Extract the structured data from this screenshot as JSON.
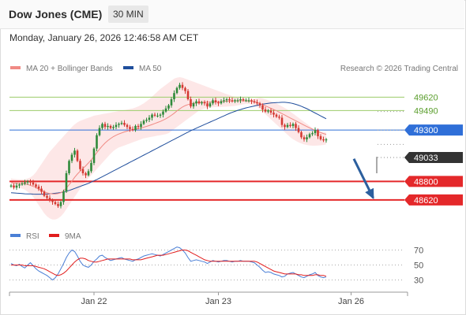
{
  "header": {
    "title": "Dow Jones (CME)",
    "interval": "30 MIN",
    "datetime": "Monday, January 26, 2026 12:46:58 AM CET"
  },
  "colors": {
    "ma20": "#f08a84",
    "bollinger_fill": "#fde3e3",
    "ma50": "#1f4e9c",
    "support": "#e4282a",
    "pivot": "#2f6fd8",
    "resistance": "#9bcc6a",
    "last_price": "#333333",
    "candle_up": "#2f8a3a",
    "candle_down": "#d43a33",
    "rsi": "#4a7fd6",
    "rsi_ma": "#e11d1d",
    "arrow": "#2c5f9e"
  },
  "chart_data": [
    {
      "type": "candlestick",
      "legend": [
        {
          "label": "MA 20 + Bollinger Bands",
          "color": "#f08a84"
        },
        {
          "label": "MA 50",
          "color": "#1f4e9c"
        }
      ],
      "legend_position": "top-left",
      "credit": "Research © 2026 Trading Central",
      "x_tick_labels": [
        {
          "label": "Jan 22",
          "index": 30
        },
        {
          "label": "Jan 23",
          "index": 75
        },
        {
          "label": "Jan 26",
          "index": 123
        }
      ],
      "ylim": [
        48420,
        49830
      ],
      "levels": [
        {
          "value": 49620,
          "label": "49620",
          "kind": "resistance"
        },
        {
          "value": 49490,
          "label": "49490",
          "kind": "resistance"
        },
        {
          "value": 49300,
          "label": "49300",
          "kind": "pivot"
        },
        {
          "value": 49033,
          "label": "49033",
          "kind": "last"
        },
        {
          "value": 48800,
          "label": "48800",
          "kind": "support"
        },
        {
          "value": 48620,
          "label": "48620",
          "kind": "support"
        }
      ],
      "arrow": {
        "from_index": 124,
        "from_value": 49020,
        "to_index": 131,
        "to_value": 48640
      },
      "close": [
        48760,
        48740,
        48760,
        48770,
        48780,
        48790,
        48800,
        48790,
        48770,
        48750,
        48730,
        48700,
        48660,
        48640,
        48620,
        48600,
        48580,
        48560,
        48600,
        48700,
        48880,
        49000,
        49060,
        49100,
        49000,
        48920,
        48880,
        48860,
        48900,
        48980,
        49120,
        49250,
        49320,
        49360,
        49330,
        49340,
        49320,
        49330,
        49350,
        49360,
        49370,
        49350,
        49330,
        49310,
        49300,
        49340,
        49330,
        49360,
        49390,
        49400,
        49420,
        49450,
        49440,
        49440,
        49450,
        49480,
        49510,
        49540,
        49600,
        49660,
        49710,
        49740,
        49710,
        49680,
        49600,
        49530,
        49560,
        49580,
        49560,
        49570,
        49560,
        49530,
        49560,
        49590,
        49570,
        49560,
        49580,
        49590,
        49600,
        49590,
        49580,
        49590,
        49590,
        49600,
        49590,
        49590,
        49590,
        49580,
        49570,
        49560,
        49540,
        49500,
        49480,
        49490,
        49470,
        49450,
        49430,
        49420,
        49350,
        49330,
        49350,
        49340,
        49360,
        49320,
        49280,
        49230,
        49210,
        49230,
        49260,
        49270,
        49300,
        49240,
        49210,
        49200,
        49210
      ],
      "ma20": [
        48790,
        48785,
        48782,
        48780,
        48778,
        48776,
        48770,
        48762,
        48752,
        48740,
        48726,
        48712,
        48700,
        48690,
        48682,
        48678,
        48678,
        48682,
        48690,
        48708,
        48736,
        48768,
        48802,
        48840,
        48872,
        48900,
        48926,
        48952,
        48980,
        49010,
        49044,
        49080,
        49114,
        49146,
        49174,
        49198,
        49218,
        49236,
        49250,
        49262,
        49272,
        49282,
        49290,
        49296,
        49302,
        49308,
        49314,
        49320,
        49328,
        49336,
        49344,
        49354,
        49364,
        49374,
        49384,
        49396,
        49410,
        49426,
        49444,
        49464,
        49486,
        49506,
        49524,
        49538,
        49548,
        49554,
        49560,
        49564,
        49568,
        49570,
        49572,
        49572,
        49573,
        49574,
        49575,
        49576,
        49578,
        49580,
        49581,
        49582,
        49583,
        49584,
        49584,
        49585,
        49585,
        49584,
        49582,
        49580,
        49575,
        49568,
        49558,
        49548,
        49536,
        49524,
        49512,
        49500,
        49488,
        49474,
        49460,
        49446,
        49432,
        49418,
        49404,
        49390,
        49376,
        49362,
        49348,
        49334,
        49322,
        49310,
        49298,
        49286,
        49276,
        49266,
        49258
      ],
      "bb_upper": [
        48830,
        48825,
        48822,
        48820,
        48820,
        48820,
        48830,
        48840,
        48860,
        48890,
        48930,
        48970,
        49010,
        49050,
        49090,
        49120,
        49150,
        49180,
        49210,
        49240,
        49270,
        49300,
        49330,
        49355,
        49375,
        49390,
        49400,
        49410,
        49420,
        49430,
        49440,
        49445,
        49450,
        49455,
        49460,
        49465,
        49470,
        49475,
        49480,
        49485,
        49490,
        49495,
        49500,
        49505,
        49510,
        49520,
        49530,
        49545,
        49560,
        49580,
        49600,
        49625,
        49650,
        49675,
        49700,
        49720,
        49740,
        49760,
        49780,
        49800,
        49810,
        49815,
        49810,
        49800,
        49790,
        49780,
        49770,
        49760,
        49750,
        49740,
        49730,
        49720,
        49710,
        49700,
        49690,
        49680,
        49670,
        49660,
        49650,
        49640,
        49630,
        49625,
        49620,
        49615,
        49610,
        49605,
        49600,
        49600,
        49605,
        49610,
        49615,
        49610,
        49600,
        49590,
        49580,
        49570,
        49560,
        49545,
        49530,
        49515,
        49500,
        49480,
        49460,
        49440,
        49420,
        49400,
        49380,
        49360,
        49340,
        49320,
        49300,
        49290,
        49285,
        49280,
        49275
      ],
      "bb_lower": [
        48760,
        48748,
        48740,
        48735,
        48730,
        48720,
        48700,
        48680,
        48650,
        48610,
        48570,
        48530,
        48490,
        48460,
        48440,
        48430,
        48430,
        48440,
        48460,
        48490,
        48530,
        48570,
        48610,
        48650,
        48690,
        48730,
        48770,
        48800,
        48830,
        48860,
        48890,
        48920,
        48950,
        48980,
        49010,
        49040,
        49070,
        49095,
        49115,
        49130,
        49140,
        49150,
        49160,
        49170,
        49180,
        49190,
        49200,
        49210,
        49220,
        49225,
        49230,
        49235,
        49240,
        49245,
        49250,
        49255,
        49260,
        49270,
        49290,
        49310,
        49330,
        49350,
        49370,
        49390,
        49410,
        49430,
        49450,
        49470,
        49490,
        49500,
        49510,
        49515,
        49520,
        49522,
        49524,
        49525,
        49526,
        49527,
        49528,
        49530,
        49532,
        49535,
        49540,
        49545,
        49550,
        49555,
        49555,
        49550,
        49540,
        49525,
        49505,
        49480,
        49455,
        49430,
        49405,
        49380,
        49355,
        49330,
        49305,
        49280,
        49255,
        49230,
        49210,
        49195,
        49180,
        49170,
        49160,
        49155,
        49150,
        49148,
        49148,
        49150,
        49152,
        49155,
        49160
      ],
      "ma50": [
        48690,
        48688,
        48686,
        48684,
        48682,
        48680,
        48679,
        48678,
        48677,
        48676,
        48676,
        48676,
        48677,
        48678,
        48680,
        48682,
        48685,
        48688,
        48692,
        48698,
        48705,
        48713,
        48722,
        48732,
        48742,
        48752,
        48762,
        48772,
        48782,
        48794,
        48806,
        48818,
        48832,
        48846,
        48860,
        48874,
        48888,
        48902,
        48916,
        48930,
        48944,
        48958,
        48972,
        48986,
        49000,
        49014,
        49028,
        49042,
        49056,
        49070,
        49084,
        49098,
        49112,
        49126,
        49140,
        49154,
        49168,
        49182,
        49196,
        49210,
        49224,
        49238,
        49252,
        49266,
        49280,
        49294,
        49306,
        49318,
        49330,
        49342,
        49354,
        49366,
        49378,
        49390,
        49402,
        49414,
        49426,
        49438,
        49450,
        49462,
        49472,
        49482,
        49492,
        49500,
        49508,
        49516,
        49522,
        49528,
        49534,
        49540,
        49546,
        49552,
        49556,
        49560,
        49564,
        49566,
        49568,
        49569,
        49570,
        49570,
        49568,
        49564,
        49558,
        49550,
        49542,
        49532,
        49520,
        49508,
        49494,
        49480,
        49466,
        49452,
        49438,
        49424,
        49410
      ]
    },
    {
      "type": "line",
      "legend": [
        {
          "label": "RSI",
          "color": "#4a7fd6"
        },
        {
          "label": "9MA",
          "color": "#e11d1d"
        }
      ],
      "ylim": [
        20,
        80
      ],
      "y_ticks": [
        70,
        50,
        30
      ],
      "series": [
        {
          "name": "RSI",
          "values": [
            52,
            50,
            49,
            51,
            48,
            46,
            50,
            53,
            49,
            45,
            42,
            40,
            38,
            36,
            33,
            30,
            33,
            38,
            45,
            52,
            60,
            66,
            70,
            68,
            62,
            55,
            50,
            48,
            47,
            50,
            55,
            58,
            62,
            63,
            60,
            58,
            56,
            57,
            58,
            59,
            60,
            58,
            57,
            56,
            55,
            57,
            58,
            60,
            62,
            63,
            64,
            65,
            64,
            63,
            62,
            64,
            66,
            68,
            70,
            72,
            74,
            73,
            70,
            66,
            60,
            55,
            56,
            57,
            56,
            55,
            54,
            52,
            54,
            56,
            55,
            54,
            55,
            56,
            56,
            55,
            54,
            55,
            55,
            56,
            55,
            55,
            55,
            54,
            53,
            50,
            47,
            43,
            40,
            41,
            40,
            38,
            37,
            36,
            34,
            35,
            38,
            39,
            40,
            38,
            36,
            34,
            33,
            35,
            37,
            38,
            40,
            36,
            34,
            33,
            34
          ]
        },
        {
          "name": "9MA",
          "values": [
            50,
            50,
            50,
            50,
            50,
            49,
            49,
            49,
            49,
            48,
            47,
            46,
            45,
            43,
            41,
            39,
            37,
            36,
            37,
            39,
            42,
            46,
            50,
            54,
            57,
            59,
            59,
            58,
            56,
            55,
            54,
            54,
            55,
            56,
            57,
            58,
            58,
            58,
            58,
            58,
            58,
            58,
            58,
            58,
            57,
            57,
            57,
            57,
            58,
            59,
            60,
            61,
            62,
            63,
            63,
            63,
            64,
            65,
            66,
            67,
            68,
            69,
            70,
            70,
            69,
            67,
            65,
            63,
            61,
            59,
            57,
            56,
            55,
            55,
            55,
            55,
            55,
            55,
            55,
            55,
            55,
            55,
            55,
            55,
            55,
            55,
            55,
            55,
            55,
            54,
            52,
            50,
            48,
            46,
            44,
            42,
            41,
            40,
            39,
            38,
            38,
            38,
            38,
            38,
            37,
            37,
            36,
            36,
            36,
            36,
            37,
            37,
            36,
            36,
            35
          ]
        }
      ]
    }
  ]
}
